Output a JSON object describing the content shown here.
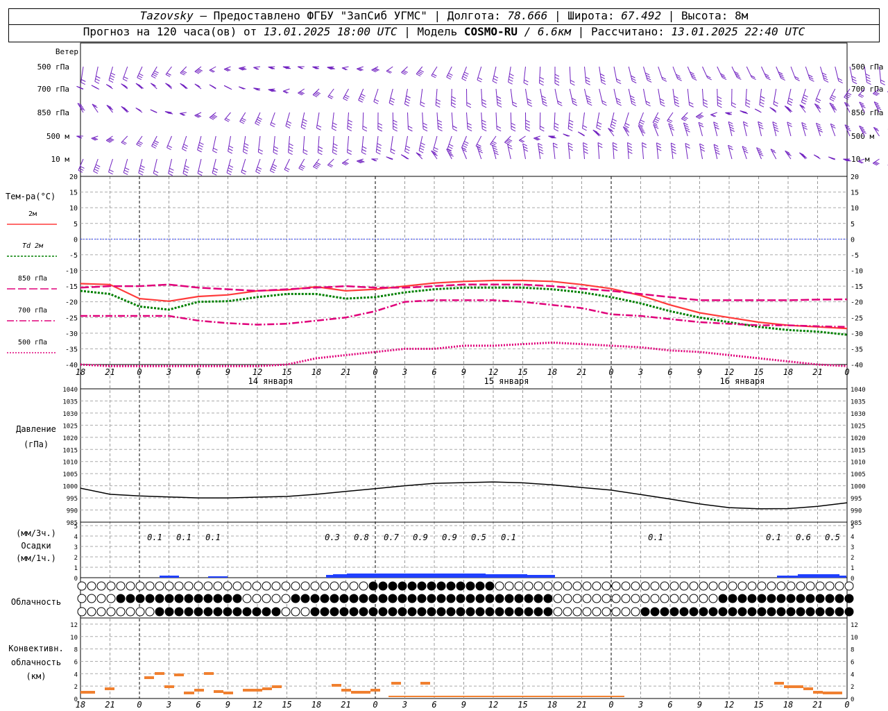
{
  "header": {
    "station": "Tazovsky",
    "provider": "— Предоставлено ФГБУ \"ЗапСиб УГМС\"",
    "lon_label": "| Долгота:",
    "lon_value": "78.666",
    "lat_label": "| Широта:",
    "lat_value": "67.492",
    "height_label": "| Высота:",
    "height_value": "8м",
    "forecast_label": "Прогноз на 120 часа(ов) от",
    "forecast_start": "13.01.2025 18:00 UTC",
    "model_label": "| Модель",
    "model_name": "COSMO-RU",
    "model_res": "/ 6.6км",
    "calc_label": "| Рассчитано:",
    "calc_time": "13.01.2025 22:40 UTC"
  },
  "labels": {
    "wind": "Ветер",
    "wind_levels": [
      "500 гПа",
      "700 гПа",
      "850 гПа",
      "500 м",
      "10 м"
    ],
    "temp": "Тем-ра(°C)",
    "legend": [
      "2м",
      "Td 2м",
      "850 гПа",
      "700 гПа",
      "500 гПа"
    ],
    "pressure": "Давление",
    "pressure_unit": "(гПа)",
    "precip_top": "(мм/3ч.)",
    "precip": "Осадки",
    "precip_bottom": "(мм/1ч.)",
    "cloud": "Облачность",
    "conv1": "Конвективн.",
    "conv2": "облачность",
    "conv3": "(км)"
  },
  "hour_ticks": [
    "18",
    "21",
    "0",
    "3",
    "6",
    "9",
    "12",
    "15",
    "18",
    "21",
    "0",
    "3",
    "6",
    "9",
    "12",
    "15",
    "18",
    "21",
    "0",
    "3",
    "6",
    "9",
    "12",
    "15",
    "18",
    "21",
    "0"
  ],
  "dates": [
    "14 января",
    "15 января",
    "16 января"
  ],
  "colors": {
    "wind": "#7020c0",
    "t2m": "#ff3a3a",
    "td2m": "#008000",
    "t850": "#e0007a",
    "zero": "#3040ff",
    "precip": "#2040ff",
    "conv": "#f08030"
  },
  "chart_data": [
    {
      "type": "line",
      "title": "Тем-ра(°C)",
      "ylim": [
        -40,
        20
      ],
      "y_ticks": [
        20,
        15,
        10,
        5,
        0,
        -5,
        -10,
        -15,
        -20,
        -25,
        -30,
        -35,
        -40
      ],
      "x_hours": [
        0,
        3,
        6,
        9,
        12,
        15,
        18,
        21,
        24,
        27,
        30,
        33,
        36,
        39,
        42,
        45,
        48,
        51,
        54,
        57,
        60,
        63,
        66,
        69,
        72,
        75,
        78
      ],
      "series": [
        {
          "name": "2м",
          "values": [
            -14.2,
            -14.5,
            -19,
            -19.8,
            -18.3,
            -17.8,
            -16.5,
            -16.2,
            -15.2,
            -16.5,
            -16,
            -15,
            -14,
            -13.5,
            -13.2,
            -13.2,
            -13.5,
            -14.5,
            -15.8,
            -18,
            -21,
            -23.5,
            -25,
            -26.5,
            -27.5,
            -28,
            -28.5
          ]
        },
        {
          "name": "Td 2м",
          "values": [
            -16.5,
            -17.5,
            -21.5,
            -22.5,
            -20,
            -19.8,
            -18.5,
            -17.5,
            -17.5,
            -19,
            -18.5,
            -17,
            -16,
            -15.5,
            -15.5,
            -15.5,
            -16,
            -17,
            -18.5,
            -20.5,
            -23,
            -25,
            -26.5,
            -28,
            -29,
            -29.5,
            -30.5
          ]
        },
        {
          "name": "850 гПа",
          "values": [
            -15.5,
            -15,
            -15,
            -14.5,
            -15.5,
            -16,
            -16.5,
            -16,
            -15.5,
            -15,
            -15.5,
            -15.5,
            -15,
            -14.5,
            -14.5,
            -14.5,
            -15,
            -15.8,
            -16.5,
            -17.5,
            -18.5,
            -19.5,
            -19.5,
            -19.5,
            -19.5,
            -19.3,
            -19.2
          ]
        },
        {
          "name": "700 гПа",
          "values": [
            -24.5,
            -24.5,
            -24.5,
            -24.5,
            -26,
            -26.8,
            -27.3,
            -27,
            -26,
            -25,
            -23,
            -20,
            -19.5,
            -19.5,
            -19.5,
            -20,
            -21,
            -22,
            -24,
            -24.5,
            -25.5,
            -26.5,
            -27,
            -27.5,
            -27.5,
            -27.8,
            -28
          ]
        },
        {
          "name": "500 гПа",
          "values": [
            -40,
            -40.5,
            -41,
            -42,
            -42.5,
            -43,
            -42.5,
            -40,
            -38,
            -37,
            -36,
            -35,
            -35,
            -34,
            -34,
            -33.5,
            -33,
            -33.5,
            -34,
            -34.5,
            -35.5,
            -36,
            -37,
            -38,
            -39,
            -40,
            -41
          ]
        }
      ]
    },
    {
      "type": "line",
      "title": "Давление (гПа)",
      "ylim": [
        985,
        1040
      ],
      "y_ticks": [
        1040,
        1035,
        1030,
        1025,
        1020,
        1015,
        1010,
        1005,
        1000,
        995,
        990,
        985
      ],
      "x_hours": [
        0,
        3,
        6,
        9,
        12,
        15,
        18,
        21,
        24,
        27,
        30,
        33,
        36,
        39,
        42,
        45,
        48,
        51,
        54,
        57,
        60,
        63,
        66,
        69,
        72,
        75,
        78
      ],
      "series": [
        {
          "name": "Давление",
          "values": [
            999,
            996.5,
            995.8,
            995.4,
            995,
            995,
            995.3,
            995.6,
            996.5,
            997.7,
            998.8,
            1000,
            1001,
            1001.3,
            1001.6,
            1001.2,
            1000.4,
            999.3,
            998.2,
            996.4,
            994.5,
            992.5,
            991,
            990.5,
            990.6,
            991.5,
            993
          ]
        }
      ]
    },
    {
      "type": "bar",
      "title": "Осадки",
      "ylim": [
        0,
        5
      ],
      "y_ticks": [
        5,
        4,
        3,
        2,
        1,
        0
      ],
      "labels_3h": [
        "0.1",
        "0.1",
        "0.1",
        "0.3",
        "0.8",
        "0.7",
        "0.9",
        "0.9",
        "0.5",
        "0.1",
        "0.1",
        "0.1",
        "0.6",
        "0.5"
      ]
    },
    {
      "type": "bar",
      "title": "Конвективн. облачность (км)",
      "ylim": [
        0,
        13
      ],
      "y_ticks": [
        12,
        10,
        8,
        6,
        4,
        2,
        0
      ]
    }
  ]
}
